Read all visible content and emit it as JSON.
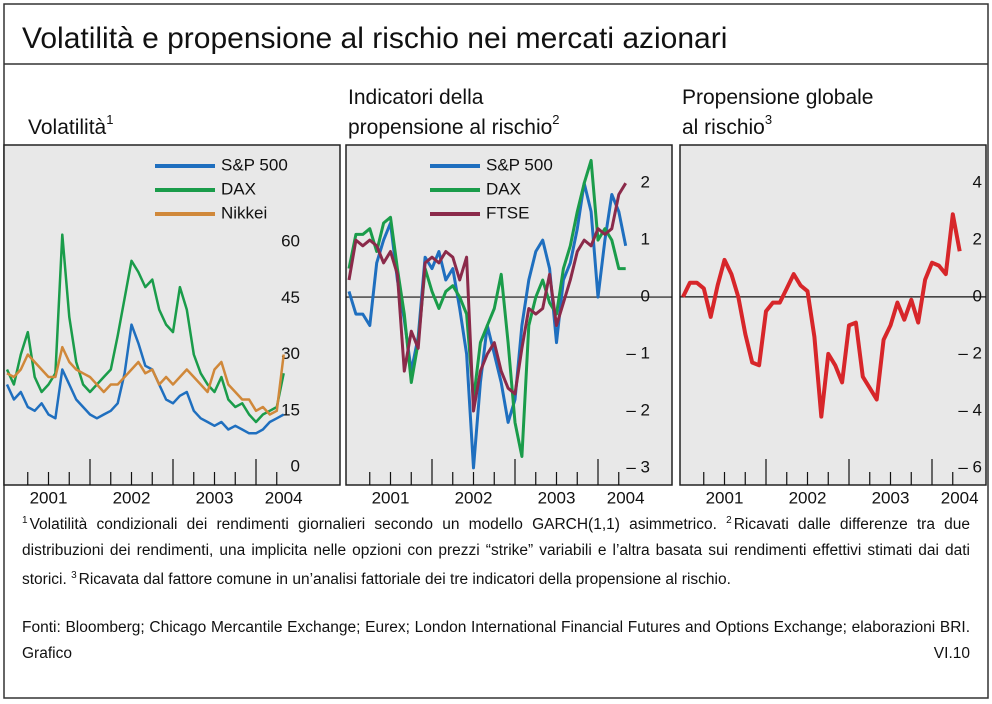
{
  "title": "Volatilità e propensione al rischio nei mercati azionari",
  "chart_data": [
    {
      "type": "line",
      "title": [
        "Volatilità"
      ],
      "title_note": "1",
      "categories": [
        null,
        null,
        null,
        null,
        null,
        null,
        "2001",
        null,
        null,
        null,
        null,
        null,
        null,
        null,
        null,
        null,
        null,
        null,
        "2002",
        null,
        null,
        null,
        null,
        null,
        null,
        null,
        null,
        null,
        null,
        null,
        "2003",
        null,
        null,
        null,
        null,
        null,
        null,
        null,
        null,
        null,
        "2004"
      ],
      "series": [
        {
          "name": "S&P 500",
          "color": "#1f6fbf",
          "values": [
            22,
            18,
            20,
            16,
            15,
            17,
            14,
            13,
            26,
            22,
            18,
            16,
            14,
            13,
            14,
            15,
            17,
            25,
            38,
            33,
            27,
            26,
            22,
            18,
            17,
            19,
            20,
            15,
            13,
            12,
            11,
            12,
            10,
            11,
            10,
            9,
            9,
            10,
            12,
            13,
            14
          ]
        },
        {
          "name": "DAX",
          "color": "#1a9c4a",
          "values": [
            26,
            22,
            30,
            36,
            24,
            20,
            22,
            25,
            62,
            40,
            28,
            22,
            20,
            22,
            24,
            26,
            35,
            45,
            55,
            52,
            48,
            50,
            42,
            38,
            36,
            48,
            42,
            30,
            25,
            22,
            20,
            24,
            18,
            16,
            17,
            14,
            12,
            14,
            15,
            16,
            25
          ]
        },
        {
          "name": "Nikkei",
          "color": "#d0883a",
          "values": [
            25,
            24,
            26,
            30,
            28,
            26,
            24,
            24,
            32,
            28,
            26,
            25,
            24,
            22,
            20,
            22,
            22,
            24,
            26,
            28,
            25,
            26,
            22,
            24,
            22,
            24,
            26,
            24,
            22,
            20,
            26,
            28,
            22,
            20,
            18,
            18,
            15,
            16,
            14,
            15,
            30
          ]
        }
      ],
      "ylim": [
        -4.8,
        85.9
      ],
      "yticks": [
        0,
        15,
        30,
        45,
        60
      ],
      "grid": false,
      "zero_line": false,
      "legend": "upper center"
    },
    {
      "type": "line",
      "title": [
        "Indicatori della",
        "propensione al rischio"
      ],
      "title_note": "2",
      "categories": [
        null,
        null,
        null,
        null,
        null,
        null,
        "2001",
        null,
        null,
        null,
        null,
        null,
        null,
        null,
        null,
        null,
        null,
        null,
        "2002",
        null,
        null,
        null,
        null,
        null,
        null,
        null,
        null,
        null,
        null,
        null,
        "2003",
        null,
        null,
        null,
        null,
        null,
        null,
        null,
        null,
        null,
        "2004"
      ],
      "series": [
        {
          "name": "S&P 500",
          "color": "#1f6fbf",
          "values": [
            0.1,
            -0.3,
            -0.3,
            -0.5,
            0.6,
            1.0,
            1.3,
            0.3,
            -0.4,
            -1.3,
            -0.7,
            0.7,
            0.5,
            0.8,
            0.3,
            0.5,
            -0.2,
            -1.0,
            -3.0,
            -1.5,
            -0.5,
            -1.0,
            -1.5,
            -2.2,
            -1.8,
            -0.5,
            0.3,
            0.8,
            1.0,
            0.5,
            -0.8,
            0.3,
            0.6,
            1.2,
            2.0,
            1.5,
            0.0,
            1.0,
            1.8,
            1.5,
            0.9
          ]
        },
        {
          "name": "DAX",
          "color": "#1a9c4a",
          "values": [
            0.5,
            1.1,
            1.1,
            1.2,
            0.8,
            1.3,
            1.4,
            0.5,
            -0.3,
            -1.5,
            -0.8,
            0.5,
            0.1,
            -0.2,
            0.1,
            0.2,
            0.0,
            -0.3,
            -1.8,
            -0.8,
            -0.5,
            -0.2,
            0.4,
            -0.8,
            -2.2,
            -2.8,
            -0.5,
            0.0,
            0.3,
            -0.1,
            -0.3,
            0.5,
            0.9,
            1.5,
            2.0,
            2.4,
            1.0,
            1.2,
            1.0,
            0.5,
            0.5
          ]
        },
        {
          "name": "FTSE",
          "color": "#8b2a4a",
          "values": [
            0.3,
            1.0,
            0.9,
            1.0,
            0.9,
            0.6,
            0.8,
            0.4,
            -1.3,
            -0.6,
            -0.9,
            0.6,
            0.7,
            0.6,
            0.8,
            0.7,
            0.3,
            0.7,
            -2.0,
            -1.3,
            -1.0,
            -0.8,
            -1.3,
            -1.6,
            -1.7,
            -0.9,
            -0.2,
            -0.3,
            -0.2,
            0.4,
            -0.5,
            -0.1,
            0.3,
            0.8,
            1.0,
            0.9,
            1.2,
            1.1,
            1.2,
            1.8,
            2.0
          ]
        }
      ],
      "ylim": [
        -3.3,
        2.67
      ],
      "yticks": [
        {
          "value": -3,
          "label": "– 3"
        },
        {
          "value": -2,
          "label": "– 2"
        },
        {
          "value": -1,
          "label": "– 1"
        },
        0,
        1,
        2
      ],
      "grid": false,
      "zero_line": true,
      "legend": "upper center"
    },
    {
      "type": "line",
      "title": [
        "Propensione globale",
        "al rischio"
      ],
      "title_note": "3",
      "categories": [
        null,
        null,
        null,
        null,
        null,
        null,
        "2001",
        null,
        null,
        null,
        null,
        null,
        null,
        null,
        null,
        null,
        null,
        null,
        "2002",
        null,
        null,
        null,
        null,
        null,
        null,
        null,
        null,
        null,
        null,
        null,
        "2003",
        null,
        null,
        null,
        null,
        null,
        null,
        null,
        null,
        null,
        "2004"
      ],
      "series": [
        {
          "color": "#d7262a",
          "values": [
            0,
            0.5,
            0.5,
            0.3,
            -0.7,
            0.4,
            1.3,
            0.8,
            0,
            -1.3,
            -2.3,
            -2.4,
            -0.5,
            -0.2,
            -0.2,
            0.3,
            0.8,
            0.4,
            0.2,
            -1.4,
            -4.2,
            -2.0,
            -2.4,
            -3.0,
            -1.0,
            -0.9,
            -2.8,
            -3.2,
            -3.6,
            -1.5,
            -1.0,
            -0.2,
            -0.8,
            -0.1,
            -0.9,
            0.6,
            1.2,
            1.1,
            0.8,
            2.9,
            1.6
          ]
        }
      ],
      "ylim": [
        -6.6,
        5.33
      ],
      "yticks": [
        {
          "value": -6,
          "label": "– 6"
        },
        {
          "value": -4,
          "label": "– 4"
        },
        {
          "value": -2,
          "label": "– 2"
        },
        0,
        2,
        4
      ],
      "grid": false,
      "zero_line": true
    }
  ],
  "notes": [
    {
      "marker": "1",
      "text": "Volatilità condizionali dei rendimenti giornalieri secondo un modello GARCH(1,1) asimmetrico."
    },
    {
      "marker": "2",
      "text": "Ricavati dalle differenze tra due distribuzioni dei rendimenti, una implicita nelle opzioni con prezzi “strike” variabili e l’altra basata sui rendimenti effettivi stimati dai dati storici."
    },
    {
      "marker": "3",
      "text": "Ricavata dal fattore comune in un’analisi fattoriale dei tre indicatori della propensione al rischio."
    }
  ],
  "sources": "Fonti: Bloomberg; Chicago Mercantile Exchange; Eurex; London International Financial Futures and Options Exchange; elaborazioni BRI.",
  "figure_label": "Grafico VI.10"
}
